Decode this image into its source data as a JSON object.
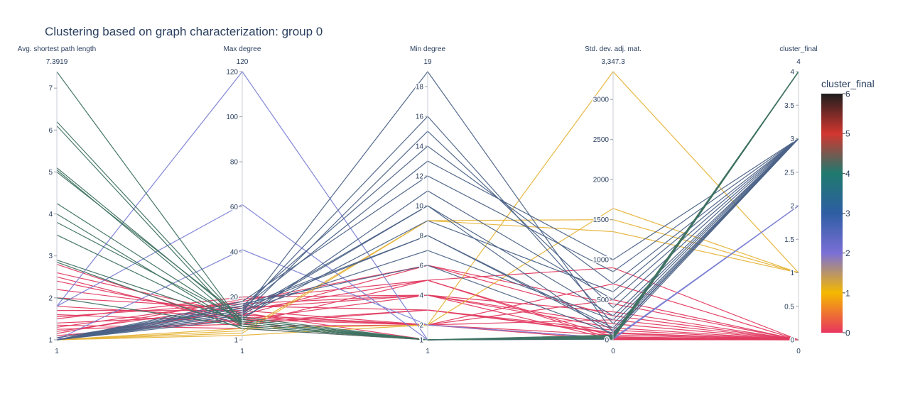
{
  "chart_data": {
    "type": "parallel_coordinates",
    "title": "Clustering based on graph characterization: group 0",
    "dimensions": [
      {
        "label": "Avg. shortest path length",
        "range_max_label": "7.3919",
        "range_min_label": "1",
        "range": [
          1,
          7.3919
        ],
        "ticks": [
          1,
          2,
          3,
          4,
          5,
          6,
          7
        ],
        "tick_labels": [
          "1",
          "2",
          "3",
          "4",
          "5",
          "6",
          "7"
        ]
      },
      {
        "label": "Max degree",
        "range_max_label": "120",
        "range_min_label": "1",
        "range": [
          1,
          120
        ],
        "ticks": [
          1,
          20,
          40,
          60,
          80,
          100,
          120
        ],
        "tick_labels": [
          "1",
          "20",
          "40",
          "60",
          "80",
          "100",
          "120"
        ]
      },
      {
        "label": "Min degree",
        "range_max_label": "19",
        "range_min_label": "1",
        "range": [
          1,
          19
        ],
        "ticks": [
          1,
          2,
          4,
          6,
          8,
          10,
          12,
          14,
          16,
          18
        ],
        "tick_labels": [
          "1",
          "2",
          "4",
          "6",
          "8",
          "10",
          "12",
          "14",
          "16",
          "18"
        ]
      },
      {
        "label": "Std. dev. adj. mat.",
        "range_max_label": "3,347.3",
        "range_min_label": "0",
        "range": [
          0,
          3347.3
        ],
        "ticks": [
          0,
          500,
          1000,
          1500,
          2000,
          2500,
          3000
        ],
        "tick_labels": [
          "0",
          "500",
          "1000",
          "1500",
          "2000",
          "2500",
          "3000"
        ]
      },
      {
        "label": "cluster_final",
        "range_max_label": "4",
        "range_min_label": "0",
        "range": [
          0,
          4
        ],
        "ticks": [
          0,
          0.5,
          1,
          1.5,
          2,
          2.5,
          3,
          3.5,
          4
        ],
        "tick_labels": [
          "0",
          "0.5",
          "1",
          "1.5",
          "2",
          "2.5",
          "3",
          "3.5",
          "4"
        ]
      }
    ],
    "lines": [
      {
        "values": [
          1.0,
          12,
          2,
          2,
          0
        ],
        "cluster": 0
      },
      {
        "values": [
          1.05,
          14,
          2,
          60,
          0
        ],
        "cluster": 0
      },
      {
        "values": [
          1.1,
          10,
          4,
          5,
          0
        ],
        "cluster": 0
      },
      {
        "values": [
          1.2,
          16,
          3,
          120,
          0
        ],
        "cluster": 0
      },
      {
        "values": [
          1.25,
          8,
          5,
          40,
          0
        ],
        "cluster": 0
      },
      {
        "values": [
          1.3,
          18,
          6,
          300,
          0
        ],
        "cluster": 0
      },
      {
        "values": [
          1.4,
          12,
          2,
          20,
          0
        ],
        "cluster": 0
      },
      {
        "values": [
          1.5,
          20,
          4,
          150,
          0
        ],
        "cluster": 0
      },
      {
        "values": [
          1.6,
          9,
          3,
          80,
          0
        ],
        "cluster": 0
      },
      {
        "values": [
          1.7,
          14,
          5,
          10,
          0
        ],
        "cluster": 0
      },
      {
        "values": [
          1.8,
          11,
          2,
          500,
          0
        ],
        "cluster": 0
      },
      {
        "values": [
          2.0,
          15,
          4,
          200,
          0
        ],
        "cluster": 0
      },
      {
        "values": [
          2.2,
          13,
          1,
          30,
          0
        ],
        "cluster": 0
      },
      {
        "values": [
          2.4,
          10,
          2,
          700,
          0
        ],
        "cluster": 0
      },
      {
        "values": [
          2.5,
          8,
          3,
          90,
          0
        ],
        "cluster": 0
      },
      {
        "values": [
          2.6,
          12,
          6,
          450,
          0
        ],
        "cluster": 0
      },
      {
        "values": [
          2.8,
          7,
          2,
          250,
          0
        ],
        "cluster": 0
      },
      {
        "values": [
          1.15,
          19,
          5,
          900,
          0
        ],
        "cluster": 0
      },
      {
        "values": [
          1.35,
          6,
          1,
          15,
          0
        ],
        "cluster": 0
      },
      {
        "values": [
          1.55,
          17,
          4,
          350,
          0
        ],
        "cluster": 0
      },
      {
        "values": [
          1.0,
          5,
          9,
          1350,
          1
        ],
        "cluster": 1
      },
      {
        "values": [
          1.0,
          3,
          2,
          1640,
          1
        ],
        "cluster": 1
      },
      {
        "values": [
          1.0,
          4,
          9,
          1500,
          1
        ],
        "cluster": 1
      },
      {
        "values": [
          1.0,
          6,
          2,
          3347.3,
          1
        ],
        "cluster": 1
      },
      {
        "values": [
          1.8,
          120,
          1,
          10,
          2
        ],
        "cluster": 2
      },
      {
        "values": [
          1.8,
          61,
          1,
          5,
          2
        ],
        "cluster": 2
      },
      {
        "values": [
          1.0,
          41,
          2,
          20,
          2
        ],
        "cluster": 2
      },
      {
        "values": [
          1.0,
          13,
          19,
          90,
          3
        ],
        "cluster": 3
      },
      {
        "values": [
          1.0,
          14,
          16,
          200,
          3
        ],
        "cluster": 3
      },
      {
        "values": [
          1.0,
          12,
          15,
          400,
          3
        ],
        "cluster": 3
      },
      {
        "values": [
          1.0,
          16,
          14,
          700,
          3
        ],
        "cluster": 3
      },
      {
        "values": [
          1.05,
          15,
          13,
          1000,
          3
        ],
        "cluster": 3
      },
      {
        "values": [
          1.0,
          18,
          12,
          850,
          3
        ],
        "cluster": 3
      },
      {
        "values": [
          1.0,
          10,
          11,
          500,
          3
        ],
        "cluster": 3
      },
      {
        "values": [
          1.0,
          12,
          10,
          300,
          3
        ],
        "cluster": 3
      },
      {
        "values": [
          1.0,
          11,
          9,
          600,
          3
        ],
        "cluster": 3
      },
      {
        "values": [
          1.0,
          16,
          8,
          120,
          3
        ],
        "cluster": 3
      },
      {
        "values": [
          1.0,
          14,
          7,
          250,
          3
        ],
        "cluster": 3
      },
      {
        "values": [
          1.0,
          17,
          6,
          80,
          3
        ],
        "cluster": 3
      },
      {
        "values": [
          1.0,
          13,
          10,
          50,
          3
        ],
        "cluster": 3
      },
      {
        "values": [
          1.0,
          15,
          8,
          150,
          3
        ],
        "cluster": 3
      },
      {
        "values": [
          7.3919,
          8,
          1,
          10,
          4
        ],
        "cluster": 4
      },
      {
        "values": [
          6.2,
          9,
          1,
          30,
          4
        ],
        "cluster": 4
      },
      {
        "values": [
          6.1,
          7,
          1,
          20,
          4
        ],
        "cluster": 4
      },
      {
        "values": [
          5.1,
          10,
          1,
          40,
          4
        ],
        "cluster": 4
      },
      {
        "values": [
          5.05,
          8,
          1,
          15,
          4
        ],
        "cluster": 4
      },
      {
        "values": [
          5.0,
          11,
          1,
          25,
          4
        ],
        "cluster": 4
      },
      {
        "values": [
          4.25,
          9,
          1,
          35,
          4
        ],
        "cluster": 4
      },
      {
        "values": [
          4.0,
          7,
          1,
          10,
          4
        ],
        "cluster": 4
      },
      {
        "values": [
          3.8,
          10,
          1,
          50,
          4
        ],
        "cluster": 4
      },
      {
        "values": [
          3.5,
          8,
          1,
          20,
          4
        ],
        "cluster": 4
      },
      {
        "values": [
          2.9,
          9,
          1,
          30,
          4
        ],
        "cluster": 4
      },
      {
        "values": [
          2.85,
          6,
          1,
          60,
          4
        ],
        "cluster": 4
      },
      {
        "values": [
          2.0,
          7,
          1,
          15,
          4
        ],
        "cluster": 4
      }
    ],
    "colorscale": [
      {
        "value": 0,
        "color": "#e8345f"
      },
      {
        "value": 1,
        "color": "#f5b800"
      },
      {
        "value": 2,
        "color": "#7b6fd6"
      },
      {
        "value": 3,
        "color": "#2e5ea3"
      },
      {
        "value": 4,
        "color": "#1f7a6e"
      },
      {
        "value": 5,
        "color": "#d2362f"
      },
      {
        "value": 6,
        "color": "#1e1e1e"
      }
    ],
    "line_colors": {
      "0": "#e13a60",
      "1": "#e6b43a",
      "2": "#7b7fd3",
      "3": "#4b6287",
      "4": "#3f7262"
    },
    "colorbar": {
      "title": "cluster_final",
      "range": [
        0,
        6
      ],
      "ticks": [
        "0",
        "1",
        "2",
        "3",
        "4",
        "5",
        "6"
      ]
    }
  }
}
